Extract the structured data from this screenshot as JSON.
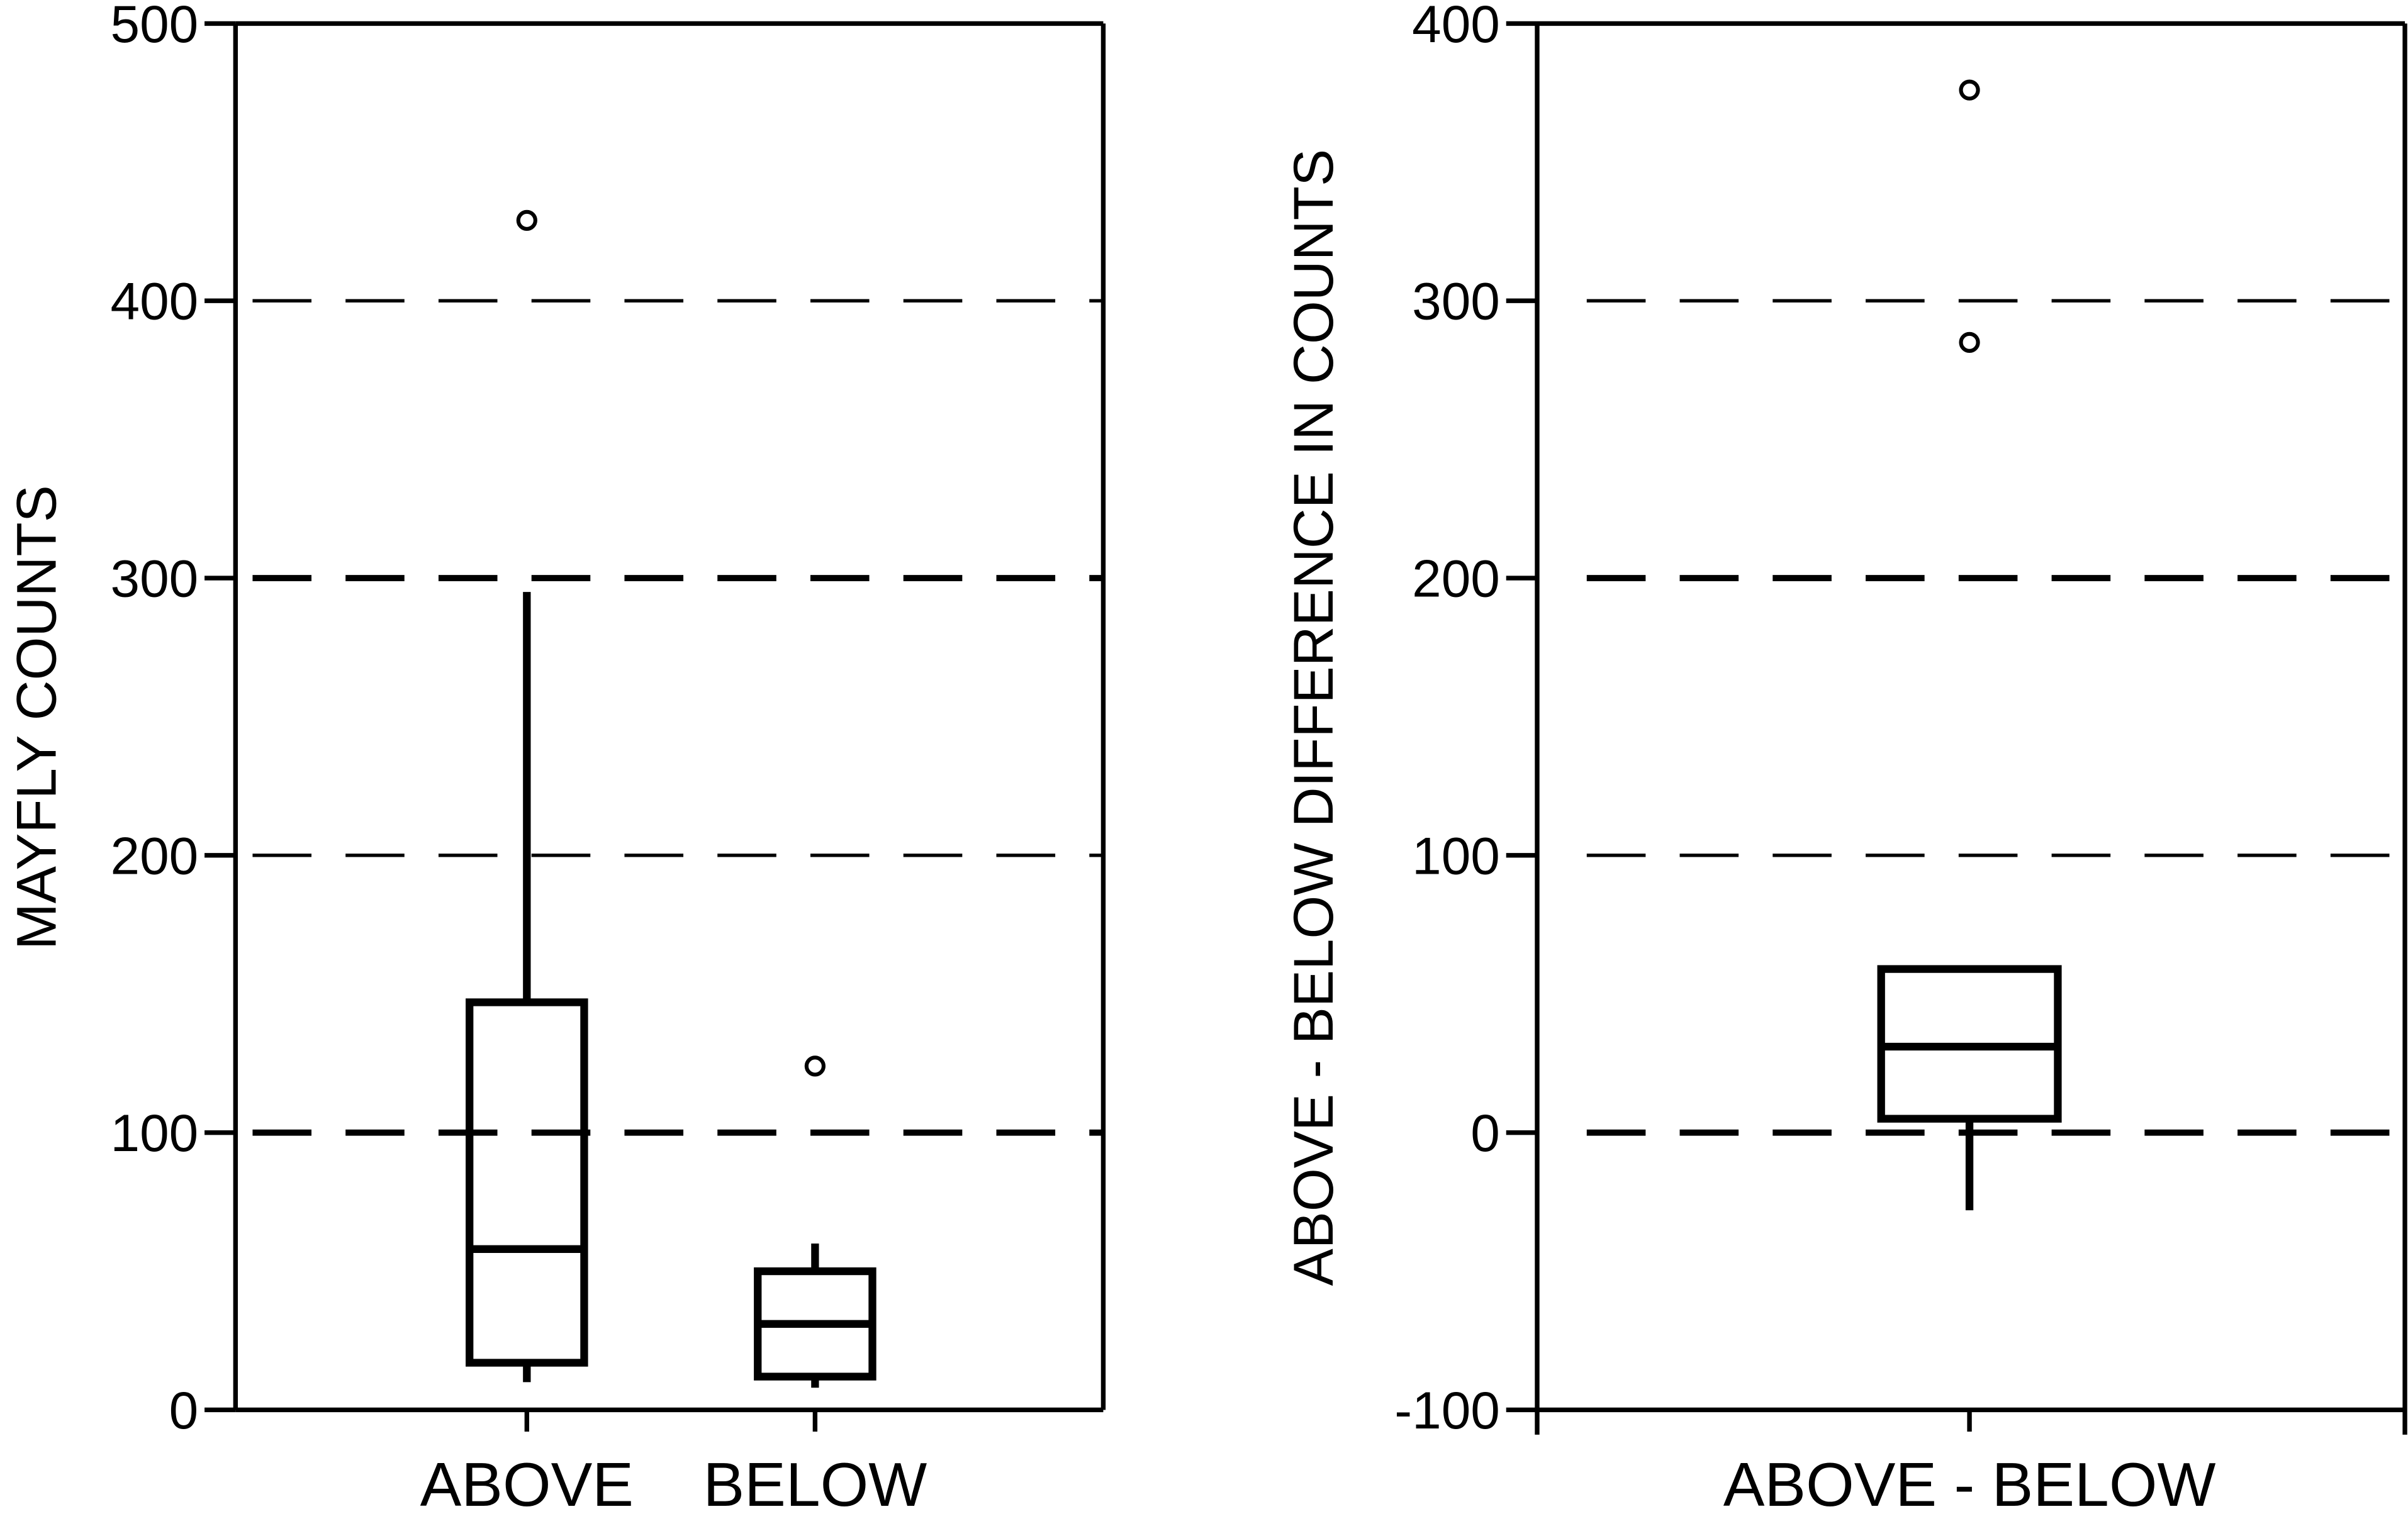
{
  "chart_data": [
    {
      "type": "boxplot",
      "ylabel": "MAYFLY COUNTS",
      "ylim": [
        0,
        500
      ],
      "yticks": [
        "0",
        "100",
        "200",
        "300",
        "400",
        "500"
      ],
      "grid": "horizontal dashed at 100, 200, 300, 400",
      "categories": [
        "ABOVE",
        "BELOW"
      ],
      "boxes": [
        {
          "category": "ABOVE",
          "whisker_low": 10,
          "q1": 17,
          "median": 58,
          "q3": 147,
          "whisker_high": 295,
          "outliers": [
            429
          ]
        },
        {
          "category": "BELOW",
          "whisker_low": 8,
          "q1": 12,
          "median": 31,
          "q3": 50,
          "whisker_high": 60,
          "outliers": [
            124
          ]
        }
      ]
    },
    {
      "type": "boxplot",
      "ylabel": "ABOVE - BELOW DIFFERENCE IN COUNTS",
      "ylim": [
        -100,
        400
      ],
      "yticks": [
        "-100",
        "0",
        "100",
        "200",
        "300",
        "400"
      ],
      "grid": "horizontal dashed at 0, 100, 200, 300",
      "categories": [
        "ABOVE - BELOW"
      ],
      "boxes": [
        {
          "category": "ABOVE - BELOW",
          "whisker_low": -28,
          "q1": 5,
          "median": 31,
          "q3": 59,
          "whisker_high": 60,
          "outliers": [
            376,
            285
          ]
        }
      ]
    }
  ]
}
